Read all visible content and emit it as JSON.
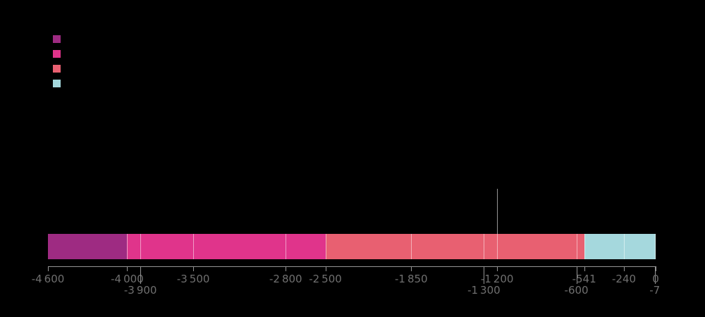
{
  "background": "#000000",
  "legend": {
    "items": [
      {
        "color": "#9e2b82"
      },
      {
        "color": "#e0348b"
      },
      {
        "color": "#e86071"
      },
      {
        "color": "#a5d8dd"
      }
    ]
  },
  "chart_data": {
    "type": "bar",
    "subtype": "horizontal-stacked-timeline",
    "title": "",
    "xlabel": "",
    "ylabel": "",
    "x_axis": {
      "min": -4600,
      "max": 0
    },
    "segments": [
      {
        "start": -4600,
        "end": -4000,
        "color": "#9e2b82"
      },
      {
        "start": -4000,
        "end": -2500,
        "color": "#e0348b"
      },
      {
        "start": -2500,
        "end": -541,
        "color": "#e86071"
      },
      {
        "start": -541,
        "end": 0,
        "color": "#a5d8dd"
      }
    ],
    "dividers": [
      -4000,
      -3900,
      -3500,
      -2800,
      -2500,
      -1850,
      -1300,
      -1200,
      -600,
      -541,
      -240,
      -7
    ],
    "ticks": [
      {
        "value": -4600,
        "label": "-4 600",
        "row": 1
      },
      {
        "value": -4000,
        "label": "-4 000",
        "row": 1
      },
      {
        "value": -3900,
        "label": "-3 900",
        "row": 2
      },
      {
        "value": -3500,
        "label": "-3 500",
        "row": 1
      },
      {
        "value": -2800,
        "label": "-2 800",
        "row": 1
      },
      {
        "value": -2500,
        "label": "-2 500",
        "row": 1
      },
      {
        "value": -1850,
        "label": "-1 850",
        "row": 1
      },
      {
        "value": -1300,
        "label": "-1 300",
        "row": 2
      },
      {
        "value": -1200,
        "label": "-1 200",
        "row": 1
      },
      {
        "value": -600,
        "label": "-600",
        "row": 2
      },
      {
        "value": -541,
        "label": "-541",
        "row": 1
      },
      {
        "value": -240,
        "label": "-240",
        "row": 1
      },
      {
        "value": -7,
        "label": "-7",
        "row": 2
      },
      {
        "value": 0,
        "label": "0",
        "row": 1
      }
    ],
    "annotation_line": {
      "value": -1200
    }
  }
}
